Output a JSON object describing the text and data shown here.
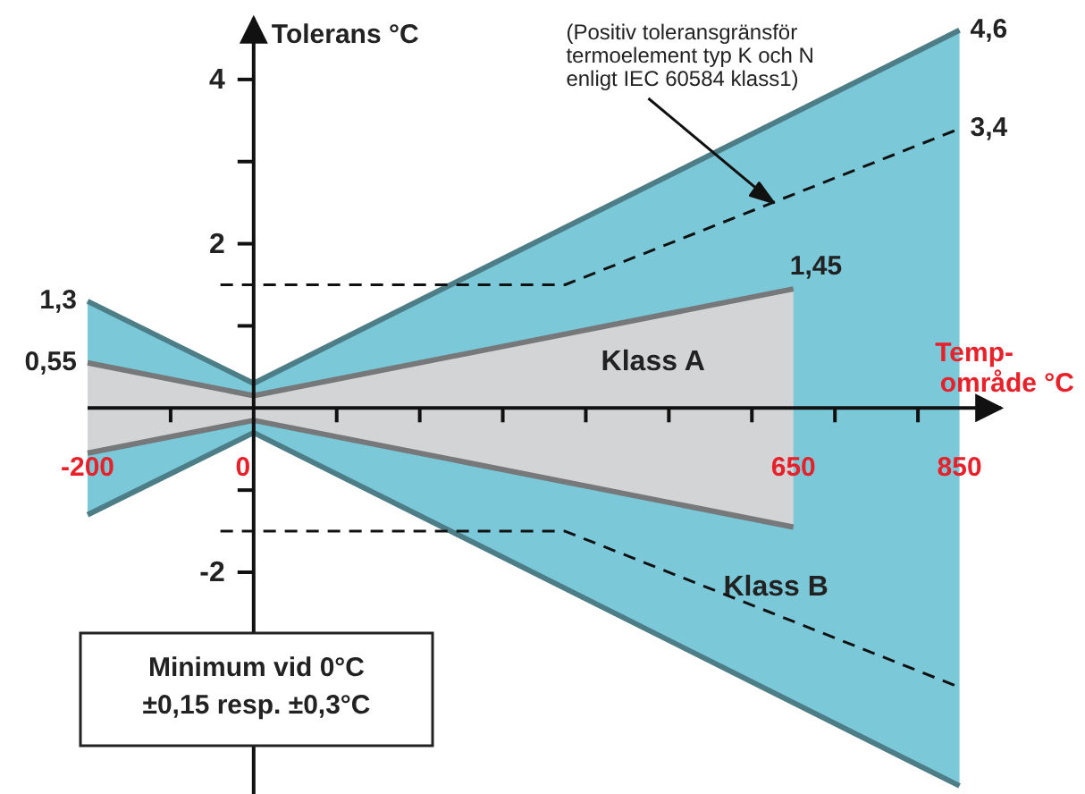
{
  "chart_data": {
    "type": "area",
    "xlabel": "Temp-\nområde °C",
    "ylabel": "Tolerans °C",
    "xlim": [
      -200,
      900
    ],
    "ylim": [
      -4.7,
      4.75
    ],
    "xticks": [
      -200,
      {
        "value": -100,
        "label": null
      },
      0,
      {
        "value": 100,
        "label": null
      },
      {
        "value": 200,
        "label": null
      },
      {
        "value": 300,
        "label": null
      },
      {
        "value": 400,
        "label": null
      },
      {
        "value": 500,
        "label": null
      },
      {
        "value": 600,
        "label": null
      },
      650,
      {
        "value": 700,
        "label": null
      },
      {
        "value": 800,
        "label": null
      },
      850
    ],
    "yticks": [
      -2,
      {
        "value": -1,
        "label": null
      },
      {
        "value": 1,
        "label": null
      },
      2,
      {
        "value": 3,
        "label": null
      },
      4
    ],
    "grid": false,
    "series": [
      {
        "color": "#7ac8d8",
        "x": [
          -200,
          0,
          850
        ],
        "values": [
          1.3,
          0.3,
          4.6
        ]
      },
      {
        "name": "Klass B",
        "color": "#7ac8d8",
        "x": [
          -200,
          0,
          850
        ],
        "values": [
          -1.3,
          -0.3,
          -4.6
        ]
      },
      {
        "name": "Klass A",
        "color": "#d3d4d6",
        "x": [
          -200,
          0,
          650
        ],
        "values": [
          0.55,
          0.15,
          1.45
        ]
      },
      {
        "color": "#d3d4d6",
        "x": [
          -200,
          0,
          650
        ],
        "values": [
          -0.55,
          -0.15,
          -1.45
        ]
      },
      {
        "type": "line",
        "color": "#111111",
        "line_style": "dashed",
        "x": [
          -40,
          375,
          850
        ],
        "values": [
          1.5,
          1.5,
          3.4
        ]
      },
      {
        "type": "line",
        "color": "#111111",
        "line_style": "dashed",
        "x": [
          -40,
          375,
          850
        ],
        "values": [
          -1.5,
          -1.5,
          -3.4
        ]
      }
    ],
    "annotations": [
      {
        "text": "1,3",
        "x": -200,
        "y": 1.3
      },
      {
        "text": "0,55",
        "x": -200,
        "y": 0.55
      },
      {
        "text": "4,6",
        "x": 850,
        "y": 4.6
      },
      {
        "text": "3,4",
        "x": 850,
        "y": 3.4
      },
      {
        "text": "1,45",
        "x": 650,
        "y": 1.45
      },
      {
        "text": "(Positiv toleransgränsför\ntermoelement typ K och N\nenligt IEC 60584 klass1)",
        "x": 626,
        "y": 2.5
      },
      "Minimum vid 0°C\n±0,15 resp. ±0,3°C"
    ]
  }
}
